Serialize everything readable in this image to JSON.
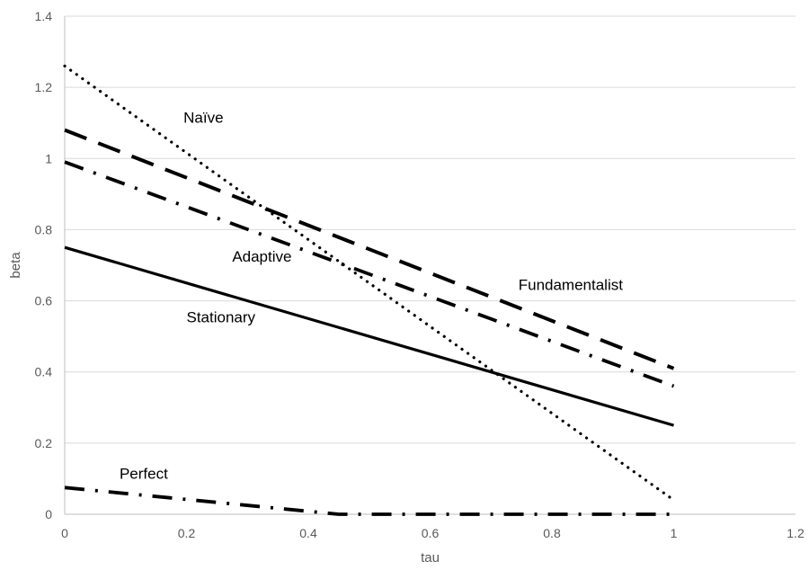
{
  "chart_data": {
    "type": "line",
    "title": "",
    "xlabel": "tau",
    "ylabel": "beta",
    "xlim": [
      0,
      1.2
    ],
    "ylim": [
      0,
      1.4
    ],
    "xticks": [
      0,
      0.2,
      0.4,
      0.6,
      0.8,
      1,
      1.2
    ],
    "yticks": [
      0,
      0.2,
      0.4,
      0.6,
      0.8,
      1,
      1.2,
      1.4
    ],
    "xtick_labels": [
      "0",
      "0.2",
      "0.4",
      "0.6",
      "0.8",
      "1",
      "1.2"
    ],
    "ytick_labels": [
      "0",
      "0.2",
      "0.4",
      "0.6",
      "0.8",
      "1",
      "1.2",
      "1.4"
    ],
    "grid": "horizontal",
    "legend": "none",
    "series": [
      {
        "name": "Naïve",
        "style": "dotted",
        "x": [
          0,
          1
        ],
        "y": [
          1.26,
          0.04
        ]
      },
      {
        "name": "Fundamentalist",
        "style": "dashed",
        "x": [
          0,
          1
        ],
        "y": [
          1.08,
          0.41
        ]
      },
      {
        "name": "Adaptive",
        "style": "dash-dot",
        "x": [
          0,
          1
        ],
        "y": [
          0.99,
          0.36
        ]
      },
      {
        "name": "Stationary",
        "style": "solid",
        "x": [
          0,
          1
        ],
        "y": [
          0.75,
          0.25
        ]
      },
      {
        "name": "Perfect",
        "style": "dash-dot",
        "x": [
          0,
          0.45,
          1
        ],
        "y": [
          0.075,
          0.0,
          0.0
        ]
      }
    ],
    "annotations": [
      {
        "text": "Naïve",
        "x": 0.195,
        "y": 1.1
      },
      {
        "text": "Fundamentalist",
        "x": 0.745,
        "y": 0.63
      },
      {
        "text": "Adaptive",
        "x": 0.275,
        "y": 0.71
      },
      {
        "text": "Stationary",
        "x": 0.2,
        "y": 0.54
      },
      {
        "text": "Perfect",
        "x": 0.09,
        "y": 0.1
      }
    ]
  }
}
